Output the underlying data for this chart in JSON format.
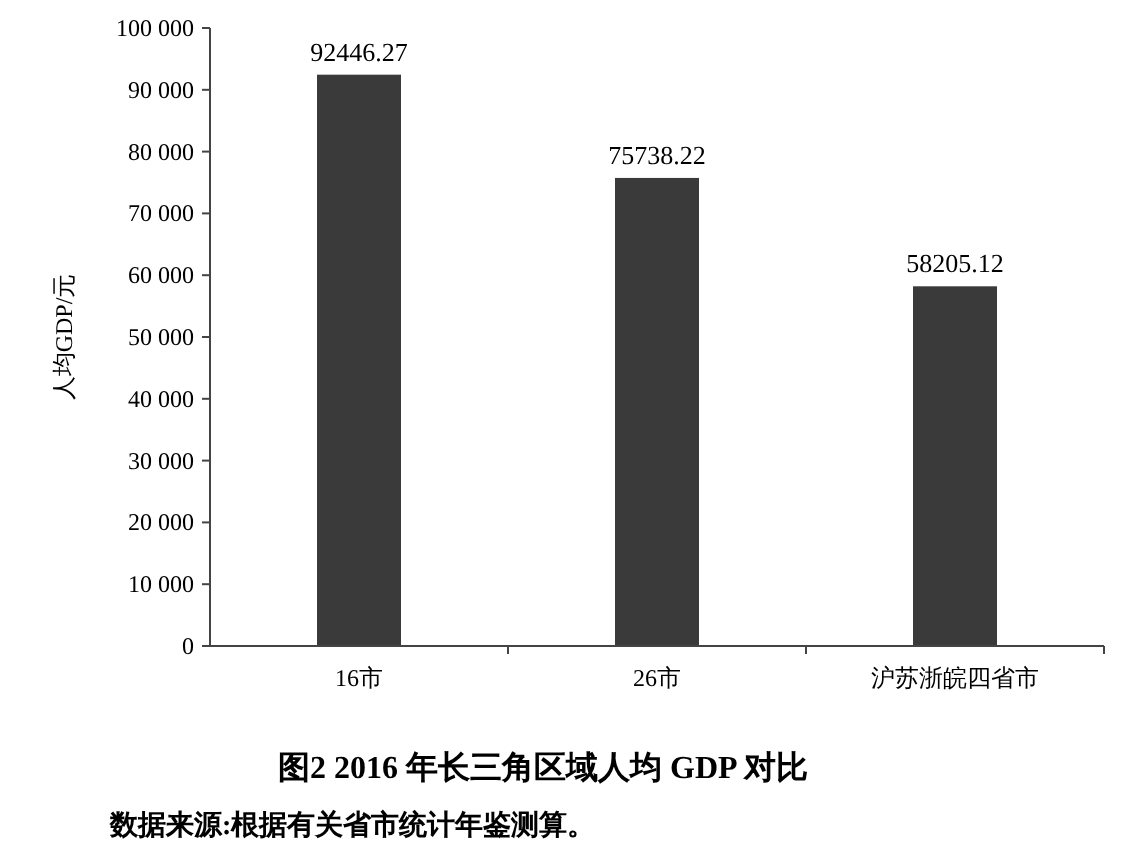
{
  "chart_data": {
    "type": "bar",
    "title": "图2  2016 年长三角区域人均 GDP 对比",
    "ylabel": "人均GDP/元",
    "annotations": [
      "数据来源:根据有关省市统计年鉴测算。"
    ],
    "categories": [
      "16市",
      "26市",
      "沪苏浙皖四省市"
    ],
    "values": [
      92446.27,
      75738.22,
      58205.12
    ],
    "color": "#3a3a3a",
    "data_labels": true,
    "ylim": [
      0,
      100000
    ],
    "yticks": [
      0,
      {
        "value": 10000,
        "label": "10 000"
      },
      {
        "value": 20000,
        "label": "20 000"
      },
      {
        "value": 30000,
        "label": "30 000"
      },
      {
        "value": 40000,
        "label": "40 000"
      },
      {
        "value": 50000,
        "label": "50 000"
      },
      {
        "value": 60000,
        "label": "60 000"
      },
      {
        "value": 70000,
        "label": "70 000"
      },
      {
        "value": 80000,
        "label": "80 000"
      },
      {
        "value": 90000,
        "label": "90 000"
      },
      {
        "value": 100000,
        "label": "100 000"
      }
    ]
  }
}
